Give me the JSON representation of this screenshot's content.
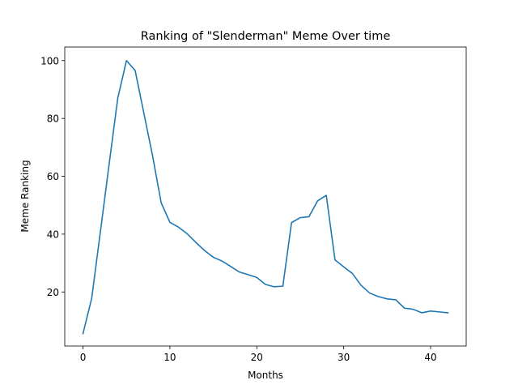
{
  "chart_data": {
    "type": "line",
    "title": "Ranking of \"Slenderman\" Meme Over time",
    "xlabel": "Months",
    "ylabel": "Meme Ranking",
    "xlim": [
      -2.1,
      44.1
    ],
    "ylim": [
      1.3,
      104.7
    ],
    "xticks": [
      0,
      10,
      20,
      30,
      40
    ],
    "yticks": [
      20,
      40,
      60,
      80,
      100
    ],
    "grid": false,
    "series": [
      {
        "name": "Slenderman",
        "color": "#1f77b4",
        "x": [
          0,
          1,
          2,
          3,
          4,
          5,
          6,
          7,
          8,
          9,
          10,
          11,
          12,
          13,
          14,
          15,
          16,
          17,
          18,
          19,
          20,
          21,
          22,
          23,
          24,
          25,
          26,
          27,
          28,
          29,
          30,
          31,
          32,
          33,
          34,
          35,
          36,
          37,
          38,
          39,
          40,
          41,
          42
        ],
        "values": [
          5.6,
          17.8,
          40.8,
          64.0,
          87.0,
          100.0,
          96.6,
          81.9,
          67.2,
          50.8,
          44.1,
          42.4,
          40.1,
          37.1,
          34.3,
          32.0,
          30.7,
          28.8,
          26.9,
          26.0,
          25.0,
          22.6,
          21.8,
          22.0,
          44.0,
          45.7,
          46.0,
          51.5,
          53.4,
          31.1,
          28.7,
          26.4,
          22.3,
          19.6,
          18.4,
          17.6,
          17.3,
          14.4,
          14.0,
          12.8,
          13.4,
          13.1,
          12.8
        ]
      }
    ]
  }
}
